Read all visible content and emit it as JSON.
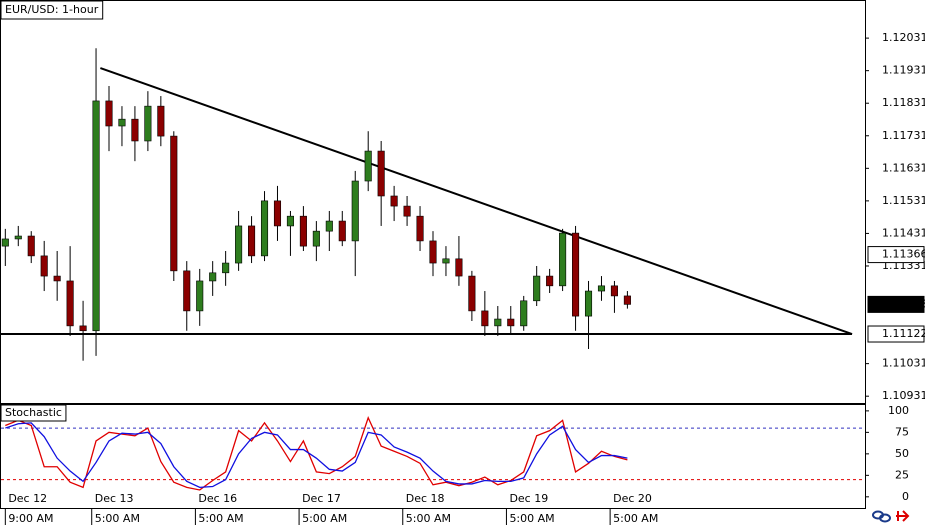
{
  "chart_data": [
    {
      "type": "candlestick",
      "title": "EUR/USD: 1-hour",
      "x": [
        0,
        3,
        6,
        9,
        12,
        15,
        18,
        21,
        24,
        27,
        30,
        33,
        36,
        39,
        42,
        45,
        48,
        51,
        54,
        57,
        60,
        63,
        66,
        69,
        72,
        75,
        78,
        81,
        84,
        87,
        90,
        93,
        96,
        99,
        102,
        105,
        108,
        111,
        114,
        117,
        120,
        123,
        126,
        129,
        132,
        135,
        138,
        141,
        144
      ],
      "open": [
        1.11392,
        1.11414,
        1.11423,
        1.11362,
        1.113,
        1.11285,
        1.11147,
        1.11132,
        1.11838,
        1.11761,
        1.11782,
        1.11715,
        1.11822,
        1.1173,
        1.11316,
        1.11193,
        1.11285,
        1.1131,
        1.1134,
        1.11454,
        1.11362,
        1.11531,
        1.11454,
        1.11484,
        1.11392,
        1.11438,
        1.11469,
        1.11408,
        1.11592,
        1.11684,
        1.11546,
        1.11515,
        1.11484,
        1.11408,
        1.1134,
        1.11353,
        1.113,
        1.11193,
        1.11147,
        1.11168,
        1.11147,
        1.11224,
        1.113,
        1.1127,
        1.11432,
        1.11177,
        1.11254,
        1.1127,
        1.11239
      ],
      "high": [
        1.11445,
        1.11454,
        1.11438,
        1.11408,
        1.11377,
        1.11392,
        1.11224,
        1.12,
        1.11884,
        1.11822,
        1.11822,
        1.11868,
        1.11853,
        1.11745,
        1.11346,
        1.11322,
        1.11346,
        1.11377,
        1.115,
        1.11484,
        1.11561,
        1.11577,
        1.115,
        1.11515,
        1.11469,
        1.115,
        1.115,
        1.11623,
        1.11745,
        1.11715,
        1.11577,
        1.11546,
        1.11515,
        1.11438,
        1.11392,
        1.11423,
        1.11316,
        1.11254,
        1.11208,
        1.11208,
        1.11239,
        1.11331,
        1.11322,
        1.11445,
        1.11454,
        1.11285,
        1.113,
        1.11285,
        1.11254
      ],
      "low": [
        1.11331,
        1.11392,
        1.1134,
        1.11254,
        1.11224,
        1.11116,
        1.1104,
        1.11055,
        1.11684,
        1.11699,
        1.11653,
        1.11684,
        1.11699,
        1.11285,
        1.11132,
        1.11147,
        1.11239,
        1.1127,
        1.11316,
        1.1134,
        1.11346,
        1.11408,
        1.11362,
        1.11377,
        1.11346,
        1.11377,
        1.11392,
        1.113,
        1.11561,
        1.11454,
        1.11469,
        1.11454,
        1.11377,
        1.113,
        1.113,
        1.1127,
        1.11162,
        1.11116,
        1.11116,
        1.11125,
        1.11132,
        1.11208,
        1.11248,
        1.11254,
        1.11132,
        1.11076,
        1.11224,
        1.11187,
        1.112
      ],
      "close": [
        1.11414,
        1.11423,
        1.11362,
        1.113,
        1.11285,
        1.11147,
        1.11132,
        1.11838,
        1.11761,
        1.11782,
        1.11715,
        1.11822,
        1.1173,
        1.11316,
        1.11193,
        1.11285,
        1.1131,
        1.1134,
        1.11454,
        1.11362,
        1.11531,
        1.11454,
        1.11484,
        1.11392,
        1.11438,
        1.11469,
        1.11408,
        1.11592,
        1.11684,
        1.11546,
        1.11515,
        1.11484,
        1.11408,
        1.1134,
        1.11353,
        1.113,
        1.11193,
        1.11147,
        1.11168,
        1.11147,
        1.11224,
        1.113,
        1.1127,
        1.11432,
        1.11177,
        1.11254,
        1.1127,
        1.11239,
        1.11213
      ],
      "up_color": "#2e7d1e",
      "down_color": "#8b0000",
      "xlim": [
        -1,
        199
      ],
      "ylim": [
        1.10907,
        1.12145
      ],
      "yticks": [
        1.12031,
        1.11931,
        1.11831,
        1.11731,
        1.11631,
        1.11531,
        1.11431,
        1.11331,
        1.11031,
        1.10931
      ],
      "xticks": [
        {
          "value": 0,
          "label": "9:00 AM"
        },
        {
          "value": 20,
          "label": "5:00 AM"
        },
        {
          "value": 44,
          "label": "5:00 AM"
        },
        {
          "value": 68,
          "label": "5:00 AM"
        },
        {
          "value": 92,
          "label": "5:00 AM"
        },
        {
          "value": 116,
          "label": "5:00 AM"
        },
        {
          "value": 140,
          "label": "5:00 AM"
        }
      ],
      "x_dates": [
        "Dec 12",
        "Dec 13",
        "Dec 16",
        "Dec 17",
        "Dec 18",
        "Dec 19",
        "Dec 20"
      ],
      "trendlines": [
        {
          "x": [
            22,
            196
          ],
          "y": [
            1.11939,
            1.11122
          ]
        },
        {
          "x": [
            -1,
            196
          ],
          "y": [
            1.11122,
            1.11122
          ]
        }
      ],
      "price_markers": [
        1.11366,
        1.11213,
        1.11122
      ],
      "marker_styles": [
        "outline",
        "filled",
        "outline"
      ]
    },
    {
      "type": "line",
      "title": "Stochastic",
      "x": [
        0,
        3,
        6,
        9,
        12,
        15,
        18,
        21,
        24,
        27,
        30,
        33,
        36,
        39,
        42,
        45,
        48,
        51,
        54,
        57,
        60,
        63,
        66,
        69,
        72,
        75,
        78,
        81,
        84,
        87,
        90,
        93,
        96,
        99,
        102,
        105,
        108,
        111,
        114,
        117,
        120,
        123,
        126,
        129,
        132,
        135,
        138,
        141,
        144
      ],
      "series": [
        {
          "color": "#e00000",
          "values": [
            83,
            89,
            83,
            35,
            35,
            17,
            11,
            65,
            75,
            73,
            71,
            80,
            41,
            17,
            11,
            8,
            19,
            29,
            77,
            65,
            86,
            65,
            41,
            65,
            29,
            27,
            35,
            47,
            92,
            59,
            53,
            47,
            39,
            14,
            17,
            13,
            17,
            23,
            14,
            19,
            29,
            71,
            77,
            89,
            29,
            39,
            53,
            47,
            43
          ]
        },
        {
          "color": "#1010e0",
          "values": [
            80,
            85,
            86,
            70,
            45,
            30,
            18,
            40,
            65,
            74,
            73,
            75,
            62,
            35,
            18,
            11,
            12,
            20,
            50,
            68,
            75,
            72,
            55,
            55,
            45,
            32,
            30,
            40,
            75,
            72,
            58,
            52,
            45,
            30,
            18,
            15,
            15,
            19,
            18,
            18,
            22,
            50,
            72,
            82,
            55,
            40,
            48,
            48,
            45
          ]
        }
      ],
      "xlim": [
        -1,
        199
      ],
      "ylim": [
        -13,
        108
      ],
      "yticks": [
        0,
        25,
        50,
        75,
        100
      ],
      "levels": [
        80,
        20
      ],
      "level_colors": [
        "#3030c0",
        "#e00000"
      ]
    }
  ]
}
